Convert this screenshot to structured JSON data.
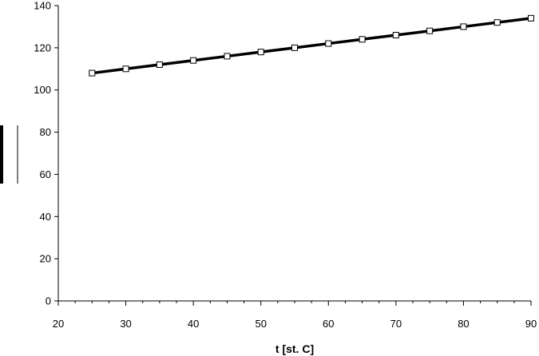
{
  "chart_data": {
    "type": "line",
    "title": "",
    "xlabel": "t [st. C]",
    "ylabel": "",
    "xlim": [
      20,
      90
    ],
    "ylim": [
      0,
      140
    ],
    "x_ticks": [
      "20",
      "30",
      "40",
      "50",
      "60",
      "70",
      "80",
      "90"
    ],
    "y_ticks": [
      "0",
      "20",
      "40",
      "60",
      "80",
      "100",
      "120",
      "140"
    ],
    "x_minor_step": 2.5,
    "grid": false,
    "legend": "none",
    "series": [
      {
        "x": [
          25,
          30,
          35,
          40,
          45,
          50,
          55,
          60,
          65,
          70,
          75,
          80,
          85,
          90
        ],
        "y": [
          108,
          110,
          112,
          114,
          116,
          118,
          120,
          122,
          124,
          126,
          128,
          130,
          132,
          134
        ],
        "marker": "square",
        "color": "#000000"
      }
    ]
  }
}
